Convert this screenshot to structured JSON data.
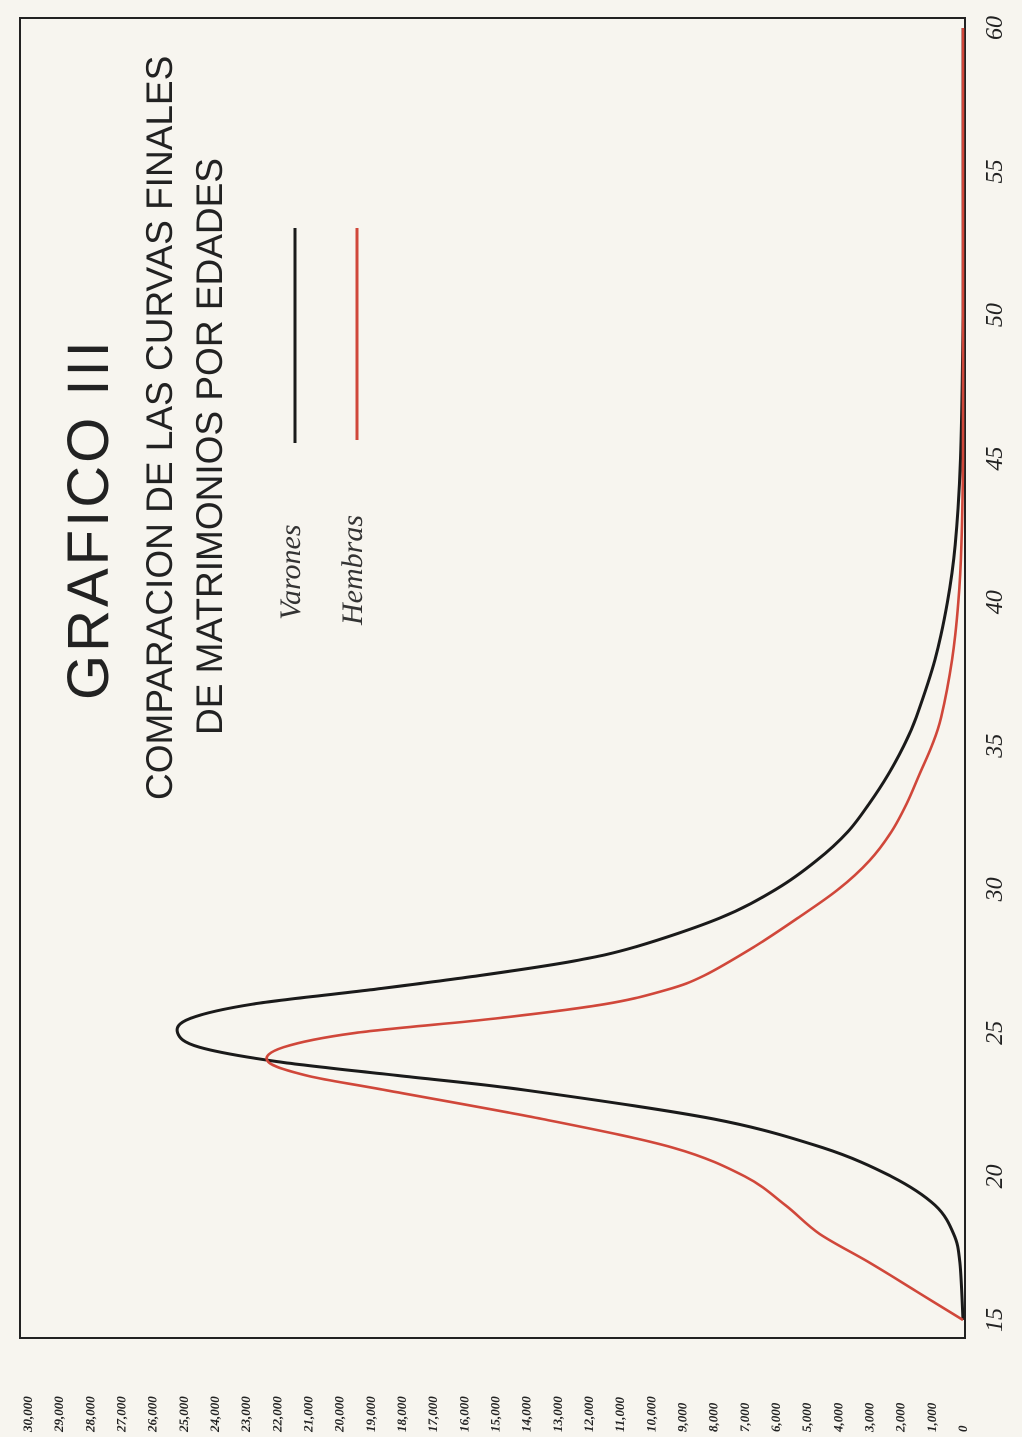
{
  "chart_data": {
    "type": "line",
    "title": "GRAFICO III",
    "subtitle_line1": "COMPARACION DE LAS CURVAS FINALES",
    "subtitle_line2": "DE MATRIMONIOS POR EDADES",
    "xlabel": "",
    "ylabel": "",
    "xlim": [
      15,
      60
    ],
    "ylim": [
      0,
      30000
    ],
    "x_ticks": [
      "15",
      "20",
      "25",
      "30",
      "35",
      "40",
      "45",
      "50",
      "55",
      "60"
    ],
    "y_ticks": [
      "0",
      "1,000",
      "2,000",
      "3,000",
      "4,000",
      "5,000",
      "6,000",
      "7,000",
      "8,000",
      "9,000",
      "10,000",
      "11,000",
      "12,000",
      "13,000",
      "14,000",
      "15,000",
      "16,000",
      "17,000",
      "18,000",
      "19,000",
      "20,000",
      "21,000",
      "22,000",
      "23,000",
      "24,000",
      "25,000",
      "26,000",
      "27,000",
      "28,000",
      "29,000",
      "30,000"
    ],
    "legend_placement": "top-center",
    "grid": false,
    "series": [
      {
        "name": "Varones",
        "color": "#1a1a1a",
        "x": [
          15,
          17,
          18,
          19,
          20,
          21,
          22,
          23,
          23.5,
          24,
          24.5,
          25,
          25.5,
          26,
          26.5,
          27,
          27.5,
          28,
          29,
          30,
          31,
          32,
          33,
          34,
          35,
          36,
          38,
          40,
          42,
          45,
          50,
          55,
          60
        ],
        "values": [
          0,
          100,
          300,
          900,
          2300,
          4500,
          8000,
          14000,
          18000,
          22000,
          24500,
          25200,
          24800,
          22800,
          19000,
          15500,
          12500,
          10500,
          7800,
          6000,
          4700,
          3700,
          3000,
          2400,
          1900,
          1500,
          900,
          500,
          250,
          80,
          0,
          0,
          0
        ]
      },
      {
        "name": "Hembras",
        "color": "#d0473a",
        "x": [
          15,
          16,
          17,
          18,
          19,
          20,
          21,
          22,
          23,
          23.5,
          24,
          24.5,
          25,
          25.5,
          26,
          26.5,
          27,
          28,
          29,
          30,
          31,
          32,
          33,
          34,
          35,
          36,
          38,
          40,
          42,
          45,
          50,
          55,
          60
        ],
        "values": [
          0,
          1500,
          3000,
          4600,
          5700,
          7000,
          9300,
          13500,
          18500,
          21000,
          22300,
          21800,
          19500,
          15000,
          11500,
          9500,
          8300,
          6700,
          5300,
          4000,
          3000,
          2300,
          1800,
          1400,
          1000,
          700,
          350,
          150,
          50,
          0,
          0,
          0,
          0
        ]
      }
    ]
  }
}
